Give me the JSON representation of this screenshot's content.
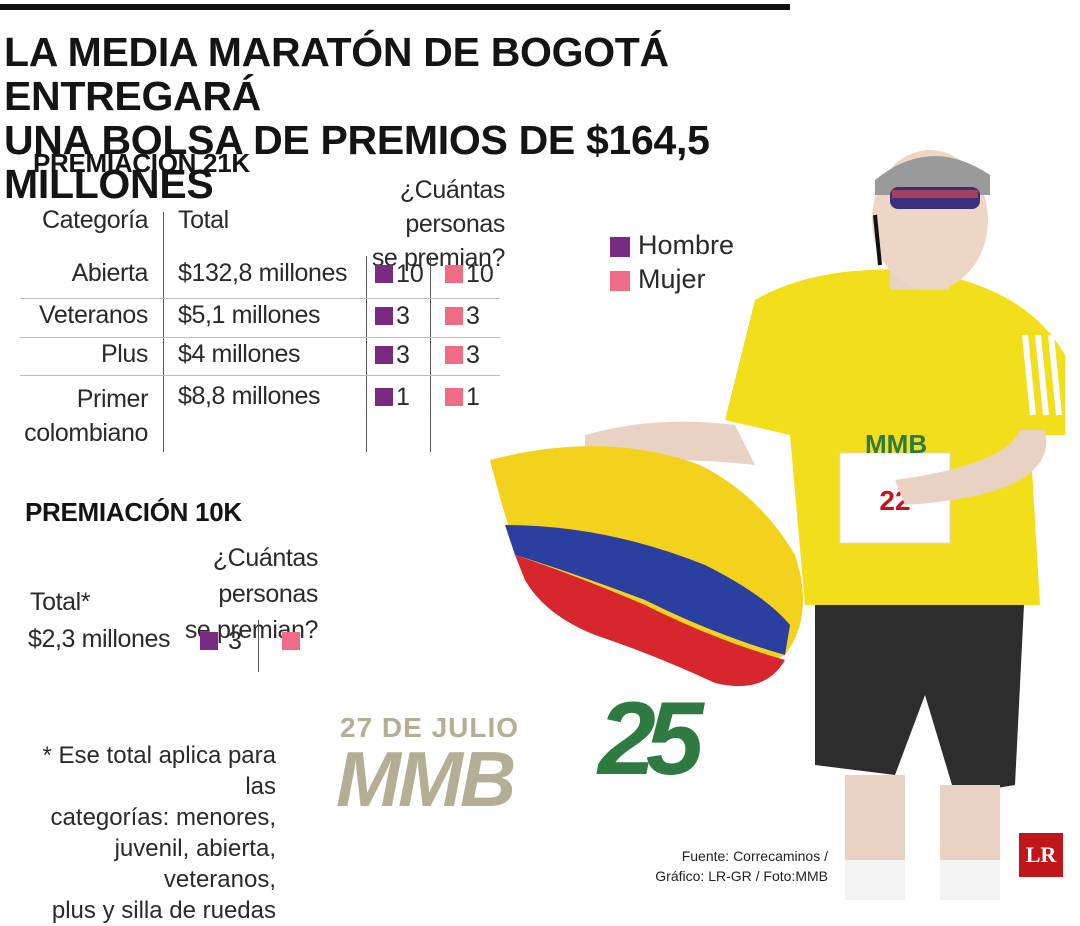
{
  "headline": {
    "line1": "LA MEDIA MARATÓN DE BOGOTÁ ENTREGARÁ",
    "line2": "UNA BOLSA DE PREMIOS DE $164,5 MILLONES"
  },
  "section21k": {
    "title": "PREMIACIÓN 21K",
    "headers": {
      "category": "Categoría",
      "total": "Total",
      "people_line1": "¿Cuántas personas",
      "people_line2": "se premian?"
    },
    "rows": [
      {
        "category": "Abierta",
        "category2": "",
        "total": "$132,8 millones",
        "men": "10",
        "women": "10"
      },
      {
        "category": "Veteranos",
        "category2": "",
        "total": "$5,1 millones",
        "men": "3",
        "women": "3"
      },
      {
        "category": "Plus",
        "category2": "",
        "total": "$4 millones",
        "men": "3",
        "women": "3"
      },
      {
        "category": "Primer",
        "category2": "colombiano",
        "total": "$8,8 millones",
        "men": "1",
        "women": "1"
      }
    ]
  },
  "legend": {
    "men": "Hombre",
    "women": "Mujer",
    "colors": {
      "men": "#7b2a82",
      "women": "#ef6d84"
    }
  },
  "section10k": {
    "title": "PREMIACIÓN 10K",
    "people_line1": "¿Cuántas personas",
    "people_line2": "se premian?",
    "total_label": "Total*",
    "total": "$2,3 millones",
    "men": "3",
    "women": ""
  },
  "footnote": {
    "line1": "* Ese total aplica para las",
    "line2": "categorías: menores,",
    "line3": "juvenil, abierta, veteranos,",
    "line4": "plus y silla de ruedas"
  },
  "event_logo": {
    "date": "27 DE JULIO",
    "word": "MMB",
    "number": "25"
  },
  "source": {
    "line1": "Fuente: Correcaminos /",
    "line2": "Gráfico: LR-GR / Foto:MMB"
  },
  "brand": {
    "logo": "LR"
  },
  "photo": {
    "description_icon": "runner-with-colombian-flag"
  }
}
